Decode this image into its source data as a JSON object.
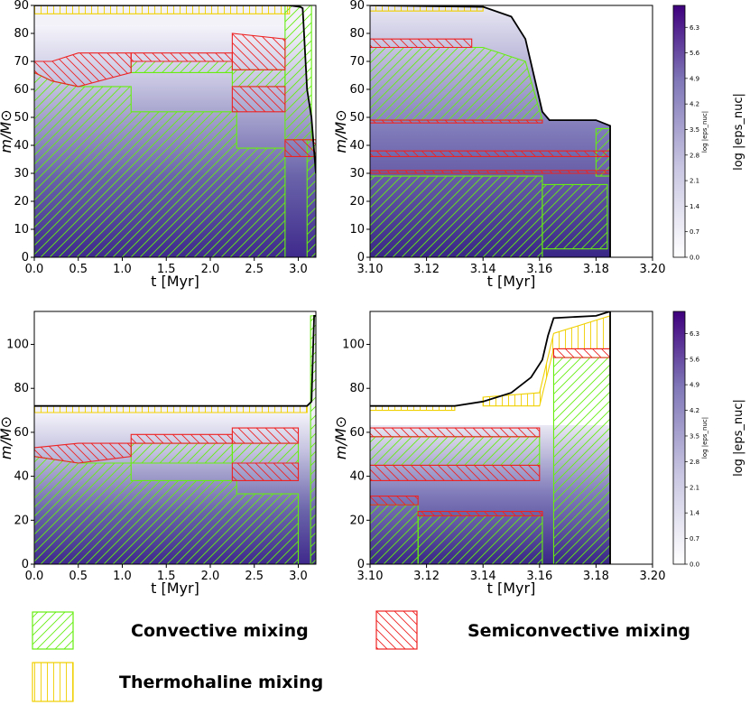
{
  "chart_data": [
    {
      "id": "p1",
      "type": "kippenhahn",
      "xlabel": "t [Myr]",
      "ylabel": "m/M⊙",
      "xlim": [
        0.0,
        3.2
      ],
      "ylim": [
        0,
        90
      ],
      "xticks": [
        "0.0",
        "0.5",
        "1.0",
        "1.5",
        "2.0",
        "2.5",
        "3.0"
      ],
      "xtick_vals": [
        0,
        0.5,
        1,
        1.5,
        2,
        2.5,
        3
      ],
      "yticks": [
        "0",
        "10",
        "20",
        "30",
        "40",
        "50",
        "60",
        "70",
        "80",
        "90"
      ],
      "ytick_vals": [
        0,
        10,
        20,
        30,
        40,
        50,
        60,
        70,
        80,
        90
      ],
      "total_mass": [
        [
          0,
          90
        ],
        [
          2.9,
          90
        ],
        [
          3.02,
          89.5
        ],
        [
          3.05,
          89
        ],
        [
          3.1,
          60
        ],
        [
          3.15,
          50
        ],
        [
          3.2,
          30
        ]
      ],
      "convective": [
        [
          [
            0,
            0
          ],
          [
            0,
            66
          ],
          [
            0.2,
            63
          ],
          [
            0.5,
            61
          ],
          [
            1.1,
            61
          ],
          [
            1.1,
            52
          ],
          [
            2.3,
            52
          ],
          [
            2.3,
            39
          ],
          [
            2.85,
            39
          ],
          [
            2.85,
            0
          ]
        ],
        [
          [
            1.1,
            66
          ],
          [
            1.1,
            70
          ],
          [
            2.25,
            70
          ],
          [
            2.25,
            66
          ]
        ],
        [
          [
            2.25,
            61
          ],
          [
            2.25,
            67
          ],
          [
            2.85,
            67
          ],
          [
            2.85,
            61
          ]
        ],
        [
          [
            2.85,
            42
          ],
          [
            2.85,
            90
          ],
          [
            3.15,
            90
          ],
          [
            3.15,
            42
          ]
        ],
        [
          [
            3.1,
            0
          ],
          [
            3.1,
            42
          ],
          [
            3.2,
            42
          ],
          [
            3.2,
            0
          ]
        ]
      ],
      "semiconvective": [
        [
          [
            0,
            66
          ],
          [
            0,
            70
          ],
          [
            0.2,
            70
          ],
          [
            0.5,
            73
          ],
          [
            1.1,
            73
          ],
          [
            1.1,
            66
          ],
          [
            0.5,
            61
          ],
          [
            0.2,
            63
          ]
        ],
        [
          [
            1.1,
            70
          ],
          [
            1.1,
            73
          ],
          [
            2.25,
            73
          ],
          [
            2.25,
            70
          ]
        ],
        [
          [
            2.25,
            67
          ],
          [
            2.25,
            80
          ],
          [
            2.85,
            78
          ],
          [
            2.85,
            67
          ]
        ],
        [
          [
            2.25,
            52
          ],
          [
            2.25,
            61
          ],
          [
            2.85,
            61
          ],
          [
            2.85,
            52
          ]
        ],
        [
          [
            2.85,
            36
          ],
          [
            2.85,
            42
          ],
          [
            3.2,
            42
          ],
          [
            3.2,
            36
          ]
        ]
      ],
      "thermohaline": [
        [
          [
            0,
            87
          ],
          [
            0,
            90
          ],
          [
            2.9,
            90
          ],
          [
            2.9,
            87
          ]
        ]
      ]
    },
    {
      "id": "p2",
      "type": "kippenhahn",
      "xlabel": "t [Myr]",
      "ylabel": "m/M⊙",
      "xlim": [
        3.1,
        3.2
      ],
      "ylim": [
        0,
        90
      ],
      "xticks": [
        "3.10",
        "3.12",
        "3.14",
        "3.16",
        "3.18",
        "3.20"
      ],
      "xtick_vals": [
        3.1,
        3.12,
        3.14,
        3.16,
        3.18,
        3.2
      ],
      "yticks": [
        "0",
        "10",
        "20",
        "30",
        "40",
        "50",
        "60",
        "70",
        "80",
        "90"
      ],
      "ytick_vals": [
        0,
        10,
        20,
        30,
        40,
        50,
        60,
        70,
        80,
        90
      ],
      "total_mass": [
        [
          3.1,
          90
        ],
        [
          3.14,
          89.5
        ],
        [
          3.15,
          86
        ],
        [
          3.155,
          78
        ],
        [
          3.158,
          65
        ],
        [
          3.161,
          52
        ],
        [
          3.1635,
          49
        ],
        [
          3.18,
          49
        ],
        [
          3.185,
          47
        ],
        [
          3.185,
          0
        ]
      ],
      "convective": [
        [
          [
            3.1,
            0
          ],
          [
            3.1,
            29
          ],
          [
            3.161,
            29
          ],
          [
            3.161,
            0
          ]
        ],
        [
          [
            3.1,
            49
          ],
          [
            3.1,
            75
          ],
          [
            3.14,
            75
          ],
          [
            3.155,
            70
          ],
          [
            3.161,
            49
          ]
        ],
        [
          [
            3.161,
            3
          ],
          [
            3.161,
            26
          ],
          [
            3.184,
            26
          ],
          [
            3.184,
            3
          ]
        ],
        [
          [
            3.18,
            29
          ],
          [
            3.18,
            46
          ],
          [
            3.185,
            46
          ],
          [
            3.185,
            29
          ]
        ]
      ],
      "semiconvective": [
        [
          [
            3.1,
            30
          ],
          [
            3.1,
            31
          ],
          [
            3.185,
            31
          ],
          [
            3.185,
            30
          ]
        ],
        [
          [
            3.1,
            36
          ],
          [
            3.1,
            38
          ],
          [
            3.185,
            38
          ],
          [
            3.185,
            36
          ]
        ],
        [
          [
            3.1,
            48
          ],
          [
            3.1,
            49
          ],
          [
            3.161,
            49
          ],
          [
            3.161,
            48
          ]
        ],
        [
          [
            3.1,
            75
          ],
          [
            3.1,
            78
          ],
          [
            3.136,
            78
          ],
          [
            3.136,
            75
          ]
        ]
      ],
      "thermohaline": [
        [
          [
            3.1,
            88
          ],
          [
            3.1,
            90
          ],
          [
            3.14,
            90
          ],
          [
            3.14,
            88
          ]
        ]
      ]
    },
    {
      "id": "p3",
      "type": "kippenhahn",
      "xlabel": "t [Myr]",
      "ylabel": "m/M⊙",
      "xlim": [
        0.0,
        3.2
      ],
      "ylim": [
        0,
        115
      ],
      "xticks": [
        "0.0",
        "0.5",
        "1.0",
        "1.5",
        "2.0",
        "2.5",
        "3.0"
      ],
      "xtick_vals": [
        0,
        0.5,
        1,
        1.5,
        2,
        2.5,
        3
      ],
      "yticks": [
        "0",
        "20",
        "40",
        "60",
        "80",
        "100"
      ],
      "ytick_vals": [
        0,
        20,
        40,
        60,
        80,
        100
      ],
      "total_mass": [
        [
          0,
          72
        ],
        [
          3.1,
          72
        ],
        [
          3.15,
          74
        ],
        [
          3.17,
          100
        ],
        [
          3.18,
          113
        ],
        [
          3.2,
          113
        ]
      ],
      "convective": [
        [
          [
            0,
            0
          ],
          [
            0,
            49
          ],
          [
            0.5,
            46
          ],
          [
            1.1,
            46
          ],
          [
            1.1,
            38
          ],
          [
            2.3,
            38
          ],
          [
            2.3,
            32
          ],
          [
            3.0,
            32
          ],
          [
            3.0,
            0
          ]
        ],
        [
          [
            1.1,
            46
          ],
          [
            1.1,
            55
          ],
          [
            2.25,
            55
          ],
          [
            2.25,
            46
          ]
        ],
        [
          [
            2.25,
            46
          ],
          [
            2.25,
            55
          ],
          [
            3.0,
            55
          ],
          [
            3.0,
            46
          ]
        ],
        [
          [
            3.14,
            0
          ],
          [
            3.14,
            113
          ],
          [
            3.2,
            113
          ],
          [
            3.2,
            0
          ]
        ]
      ],
      "semiconvective": [
        [
          [
            0,
            49
          ],
          [
            0,
            53
          ],
          [
            0.5,
            55
          ],
          [
            1.1,
            55
          ],
          [
            1.1,
            49
          ],
          [
            0.5,
            46
          ]
        ],
        [
          [
            1.1,
            55
          ],
          [
            1.1,
            59
          ],
          [
            2.25,
            59
          ],
          [
            2.25,
            55
          ]
        ],
        [
          [
            2.25,
            55
          ],
          [
            2.25,
            62
          ],
          [
            3.0,
            62
          ],
          [
            3.0,
            55
          ]
        ],
        [
          [
            2.25,
            38
          ],
          [
            2.25,
            46
          ],
          [
            3.0,
            46
          ],
          [
            3.0,
            38
          ]
        ]
      ],
      "thermohaline": [
        [
          [
            0,
            69
          ],
          [
            0,
            72
          ],
          [
            3.1,
            72
          ],
          [
            3.1,
            69
          ]
        ]
      ]
    },
    {
      "id": "p4",
      "type": "kippenhahn",
      "xlabel": "t [Myr]",
      "ylabel": "m/M⊙",
      "xlim": [
        3.1,
        3.2
      ],
      "ylim": [
        0,
        115
      ],
      "xticks": [
        "3.10",
        "3.12",
        "3.14",
        "3.16",
        "3.18",
        "3.20"
      ],
      "xtick_vals": [
        3.1,
        3.12,
        3.14,
        3.16,
        3.18,
        3.2
      ],
      "yticks": [
        "0",
        "20",
        "40",
        "60",
        "80",
        "100"
      ],
      "ytick_vals": [
        0,
        20,
        40,
        60,
        80,
        100
      ],
      "total_mass": [
        [
          3.1,
          72
        ],
        [
          3.13,
          72
        ],
        [
          3.14,
          74
        ],
        [
          3.15,
          78
        ],
        [
          3.157,
          85
        ],
        [
          3.161,
          93
        ],
        [
          3.163,
          104
        ],
        [
          3.165,
          112
        ],
        [
          3.18,
          113
        ],
        [
          3.185,
          115
        ],
        [
          3.185,
          0
        ]
      ],
      "convective": [
        [
          [
            3.1,
            0
          ],
          [
            3.1,
            27
          ],
          [
            3.117,
            27
          ],
          [
            3.117,
            0
          ]
        ],
        [
          [
            3.117,
            0
          ],
          [
            3.117,
            22
          ],
          [
            3.161,
            22
          ],
          [
            3.161,
            0
          ]
        ],
        [
          [
            3.1,
            45
          ],
          [
            3.1,
            58
          ],
          [
            3.16,
            58
          ],
          [
            3.16,
            45
          ]
        ],
        [
          [
            3.165,
            0
          ],
          [
            3.165,
            94
          ],
          [
            3.185,
            94
          ],
          [
            3.185,
            0
          ]
        ]
      ],
      "semiconvective": [
        [
          [
            3.1,
            27
          ],
          [
            3.1,
            31
          ],
          [
            3.117,
            31
          ],
          [
            3.117,
            27
          ]
        ],
        [
          [
            3.117,
            22
          ],
          [
            3.117,
            24
          ],
          [
            3.161,
            24
          ],
          [
            3.161,
            22
          ]
        ],
        [
          [
            3.1,
            38
          ],
          [
            3.1,
            45
          ],
          [
            3.16,
            45
          ],
          [
            3.16,
            38
          ]
        ],
        [
          [
            3.1,
            58
          ],
          [
            3.1,
            62
          ],
          [
            3.16,
            62
          ],
          [
            3.16,
            58
          ]
        ],
        [
          [
            3.165,
            94
          ],
          [
            3.165,
            98
          ],
          [
            3.185,
            98
          ],
          [
            3.185,
            94
          ]
        ]
      ],
      "thermohaline": [
        [
          [
            3.1,
            70
          ],
          [
            3.1,
            72
          ],
          [
            3.13,
            72
          ],
          [
            3.13,
            70
          ]
        ],
        [
          [
            3.14,
            72
          ],
          [
            3.14,
            76
          ],
          [
            3.16,
            78
          ],
          [
            3.165,
            105
          ],
          [
            3.185,
            113
          ],
          [
            3.185,
            98
          ],
          [
            3.165,
            98
          ],
          [
            3.16,
            72
          ]
        ]
      ]
    }
  ],
  "colorbar": {
    "label": "log |eps_nuc|",
    "small_label": "log |eps_nuc|",
    "ticks": [
      "0.0",
      "0.7",
      "1.4",
      "2.1",
      "2.8",
      "3.5",
      "4.2",
      "4.9",
      "5.6",
      "6.3"
    ],
    "range": [
      0,
      6.9
    ],
    "color_min": "#ffffff",
    "color_max": "#3f007d"
  },
  "legend": {
    "convective": {
      "label": "Convective mixing",
      "color": "#66ee11"
    },
    "semiconvective": {
      "label": "Semiconvective mixing",
      "color": "#ee2222"
    },
    "thermohaline": {
      "label": "Thermohaline mixing",
      "color": "#f0d000"
    }
  },
  "mass_line_color": "#000000"
}
